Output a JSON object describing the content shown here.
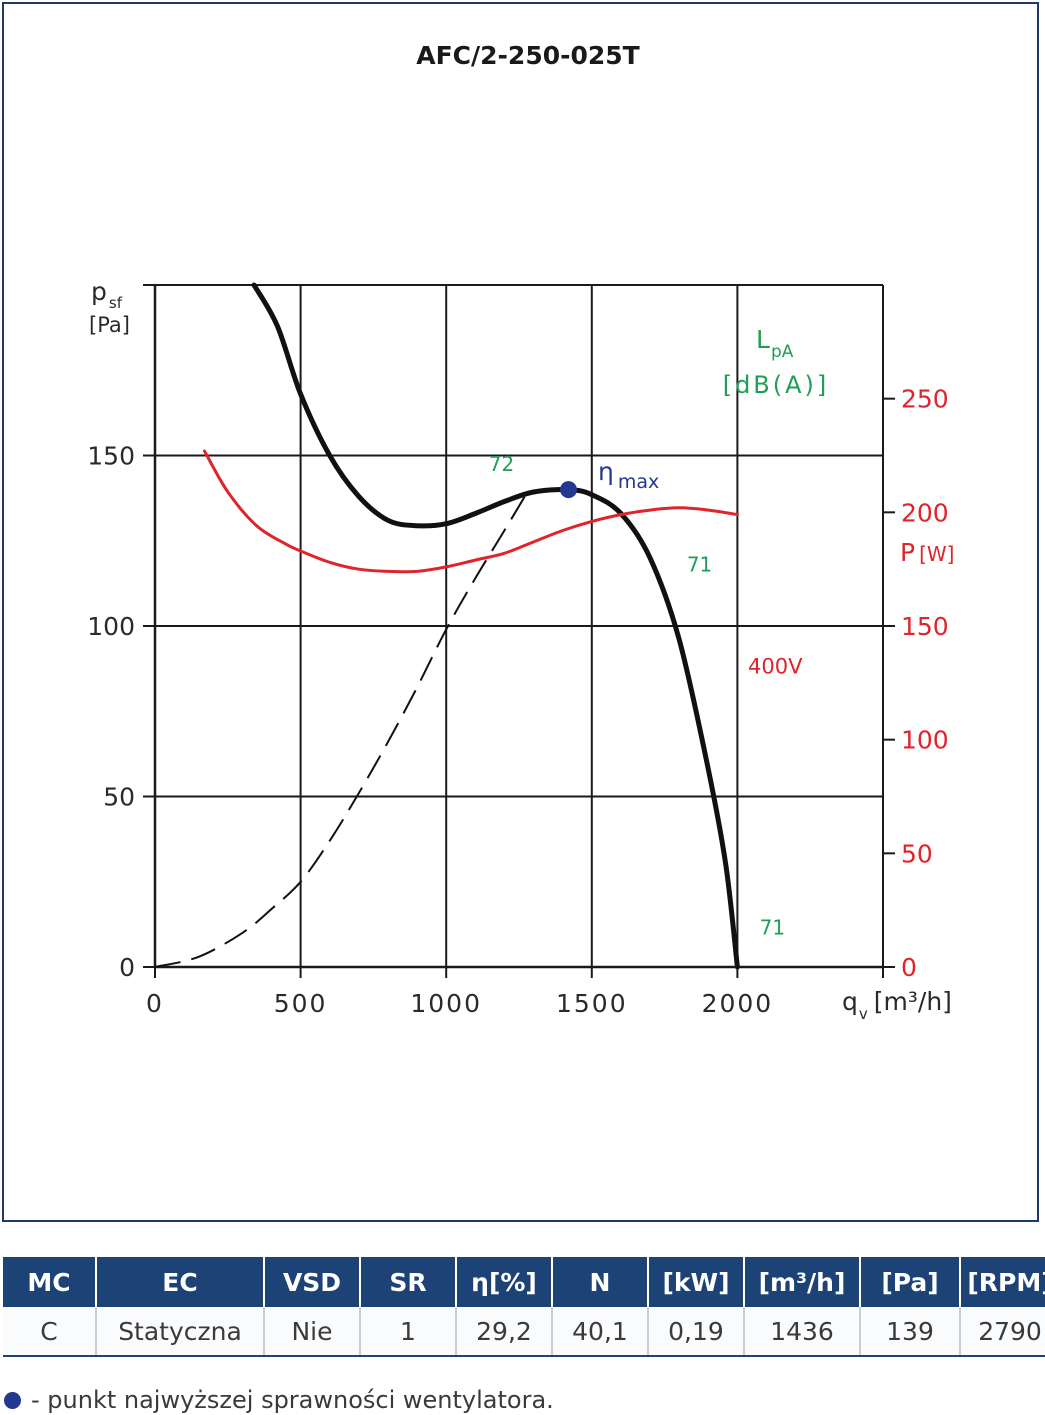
{
  "chart_data": {
    "type": "line",
    "title": "AFC/2-250-025T",
    "x_axis": {
      "label_main": "q",
      "label_sub": "v",
      "unit": "[m³/h]",
      "range": [
        0,
        2500
      ],
      "ticks": [
        0,
        500,
        1000,
        1500,
        2000
      ],
      "grid": true
    },
    "y_axis_left": {
      "label_main": "p",
      "label_sub": "sf",
      "unit": "[Pa]",
      "range": [
        0,
        200
      ],
      "ticks": [
        0,
        50,
        100,
        150
      ],
      "grid": true
    },
    "y_axis_right": {
      "label_main": "P",
      "unit": "[W]",
      "range": [
        0,
        300
      ],
      "ticks": [
        0,
        50,
        100,
        150,
        200,
        250
      ],
      "color": "#e0242b"
    },
    "sound_label": {
      "main": "L",
      "sub": "pA",
      "unit": "[dB(A)]",
      "color": "#1f9e55"
    },
    "series": [
      {
        "role": "pressure",
        "style": "solid",
        "color": "#111111",
        "points": [
          [
            340,
            200
          ],
          [
            420,
            188
          ],
          [
            500,
            168
          ],
          [
            600,
            150
          ],
          [
            700,
            138
          ],
          [
            800,
            131
          ],
          [
            900,
            129.4
          ],
          [
            1000,
            130
          ],
          [
            1100,
            133
          ],
          [
            1200,
            136.5
          ],
          [
            1300,
            139.3
          ],
          [
            1420,
            140
          ],
          [
            1500,
            138.5
          ],
          [
            1600,
            133
          ],
          [
            1700,
            120
          ],
          [
            1800,
            96
          ],
          [
            1900,
            58
          ],
          [
            1960,
            30
          ],
          [
            2000,
            0
          ]
        ]
      },
      {
        "role": "power",
        "name": "400V",
        "color": "#e0242b",
        "axis": "right",
        "points": [
          [
            170,
            227
          ],
          [
            250,
            209
          ],
          [
            350,
            194
          ],
          [
            450,
            186
          ],
          [
            500,
            183
          ],
          [
            600,
            178
          ],
          [
            700,
            175
          ],
          [
            800,
            174
          ],
          [
            900,
            174
          ],
          [
            1000,
            176
          ],
          [
            1100,
            179
          ],
          [
            1200,
            182
          ],
          [
            1300,
            187
          ],
          [
            1400,
            192
          ],
          [
            1500,
            196
          ],
          [
            1600,
            199
          ],
          [
            1700,
            201
          ],
          [
            1800,
            202
          ],
          [
            1900,
            201
          ],
          [
            2000,
            199
          ]
        ]
      },
      {
        "role": "system-curve",
        "style": "dashed",
        "color": "#111111",
        "points": [
          [
            0,
            0
          ],
          [
            150,
            3
          ],
          [
            300,
            10
          ],
          [
            400,
            17
          ],
          [
            500,
            25
          ],
          [
            600,
            37
          ],
          [
            700,
            51
          ],
          [
            800,
            66
          ],
          [
            900,
            82
          ],
          [
            1000,
            99
          ],
          [
            1100,
            114
          ],
          [
            1200,
            128
          ],
          [
            1270,
            138
          ]
        ]
      }
    ],
    "eta_max": {
      "x": 1420,
      "y": 140,
      "label_main": "η",
      "label_sub": "max",
      "color": "#23388f"
    },
    "annotations": [
      {
        "text": "72",
        "x": 1190,
        "y": 145.5,
        "color": "#1f9e55"
      },
      {
        "text": "71",
        "x": 1870,
        "y": 116,
        "color": "#1f9e55"
      },
      {
        "text": "71",
        "x": 2120,
        "y": 9.5,
        "color": "#1f9e55"
      },
      {
        "text": "400V",
        "x": 2130,
        "y": 86,
        "color": "#e0242b"
      }
    ]
  },
  "table": {
    "headers": [
      "MC",
      "EC",
      "VSD",
      "SR",
      "η[%]",
      "N",
      "[kW]",
      "[m³/h]",
      "[Pa]",
      "[RPM]"
    ],
    "rows": [
      [
        "C",
        "Statyczna",
        "Nie",
        "1",
        "29,2",
        "40,1",
        "0,19",
        "1436",
        "139",
        "2790"
      ]
    ]
  },
  "footnote": "- punkt najwyższej sprawności wentylatora."
}
